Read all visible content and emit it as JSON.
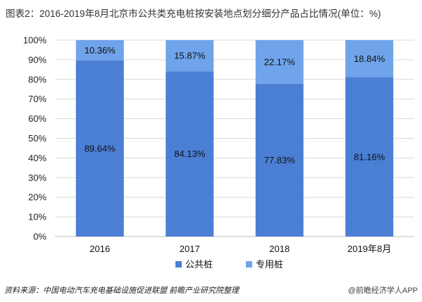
{
  "title": "图表2：2016-2019年8月北京市公共类充电桩按安装地点划分细分产品占比情况(单位：%)",
  "source": "资料来源：中国电动汽车充电基础设施促进联盟 前瞻产业研究院整理",
  "brand": "@前瞻经济学人APP",
  "chart_data": {
    "type": "bar",
    "stacked": true,
    "categories": [
      "2016",
      "2017",
      "2018",
      "2019年8月"
    ],
    "series": [
      {
        "name": "公共桩",
        "values": [
          89.64,
          84.13,
          77.83,
          81.16
        ],
        "labels": [
          "89.64%",
          "84.13%",
          "77.83%",
          "81.16%"
        ],
        "color": "#4A7FD4"
      },
      {
        "name": "专用桩",
        "values": [
          10.36,
          15.87,
          22.17,
          18.84
        ],
        "labels": [
          "10.36%",
          "15.87%",
          "22.17%",
          "18.84%"
        ],
        "color": "#6FA3EA"
      }
    ],
    "ylim": [
      0,
      100
    ],
    "yticks": [
      "0%",
      "10%",
      "20%",
      "30%",
      "40%",
      "50%",
      "60%",
      "70%",
      "80%",
      "90%",
      "100%"
    ],
    "legend_position": "bottom",
    "grid": true
  }
}
